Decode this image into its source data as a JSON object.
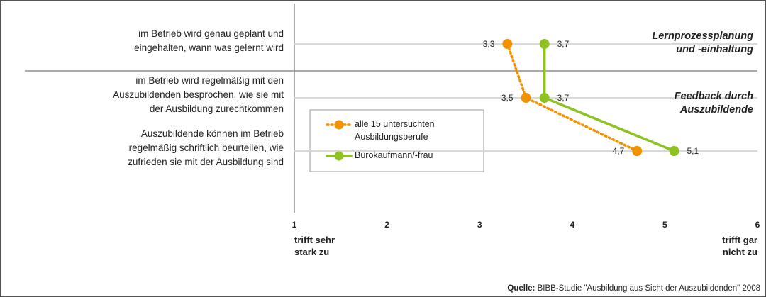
{
  "chart_data": {
    "type": "line",
    "categories": [
      "im Betrieb wird genau geplant und\neingehalten, wann was gelernt wird",
      "im Betrieb wird regelmäßig mit den\nAuszubildenden besprochen, wie sie mit\nder Ausbildung zurechtkommen",
      "Auszubildende können im Betrieb\nregelmäßig schriftlich beurteilen, wie\nzufrieden sie mit der Ausbildung sind"
    ],
    "series": [
      {
        "name": "alle 15 untersuchten\nAusbildungsberufe",
        "color": "#f39200",
        "values": [
          3.3,
          3.5,
          4.7
        ],
        "value_labels": [
          "3,3",
          "3,5",
          "4,7"
        ]
      },
      {
        "name": "Bürokaufmann/-frau",
        "color": "#8dc21f",
        "values": [
          3.7,
          3.7,
          5.1
        ],
        "value_labels": [
          "3,7",
          "3,7",
          "5,1"
        ]
      }
    ],
    "xlim": [
      1,
      6
    ],
    "xticks": [
      1,
      2,
      3,
      4,
      5,
      6
    ],
    "grid": true,
    "group_labels": [
      "Lernprozessplanung\nund -einhaltung",
      "Feedback durch\nAuszubildende"
    ],
    "x_axis_low_label": "trifft sehr\nstark zu",
    "x_axis_high_label": "trifft gar\nnicht zu",
    "source_label": "Quelle:",
    "source": "BIBB-Studie \"Ausbildung aus Sicht der Auszubildenden\" 2008"
  }
}
